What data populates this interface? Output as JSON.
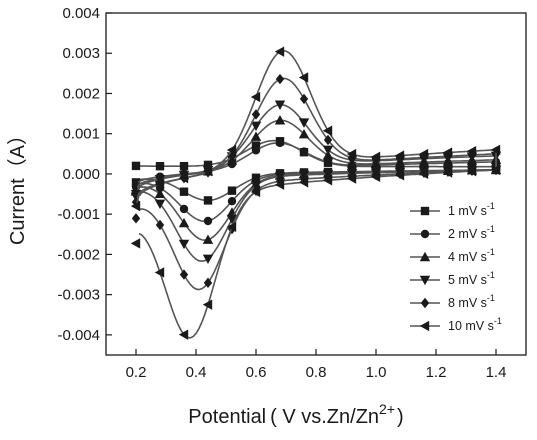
{
  "chart_data": {
    "type": "line",
    "xlabel": "Potential",
    "xlabel_parens": "( V vs.Zn/Zn",
    "xlabel_sup": "2+",
    "xlabel_close": ")",
    "ylabel": "Current（A）",
    "xlim": [
      0.1,
      1.5
    ],
    "ylim": [
      -0.0045,
      0.004
    ],
    "xticks": [
      0.2,
      0.4,
      0.6,
      0.8,
      1.0,
      1.2,
      1.4
    ],
    "xtick_labels": [
      "0.2",
      "0.4",
      "0.6",
      "0.8",
      "1.0",
      "1.2",
      "1.4"
    ],
    "yticks": [
      0.004,
      0.003,
      0.002,
      0.001,
      0.0,
      -0.001,
      -0.002,
      -0.003,
      -0.004
    ],
    "ytick_labels": [
      "0.004",
      "0.003",
      "0.002",
      "0.001",
      "0.000",
      "-0.001",
      "-0.002",
      "-0.003",
      "-0.004"
    ],
    "grid": false,
    "legend_position": "right",
    "legend_unit": "mV s",
    "legend_unit_sup": "-1",
    "series": [
      {
        "name": "1",
        "marker": "square",
        "color": "#2b2b2b",
        "x0": [
          0.2,
          0.0002
        ],
        "anodic_peak": [
          0.66,
          0.00075
        ],
        "x_end": [
          1.4,
          0.00018
        ],
        "cathodic_peak": [
          0.44,
          -0.00065
        ],
        "return_end": [
          0.2,
          -0.0002
        ]
      },
      {
        "name": "2",
        "marker": "circle",
        "color": "#2b2b2b",
        "x0": [
          0.2,
          -0.0003
        ],
        "anodic_peak": [
          0.67,
          0.00082
        ],
        "x_end": [
          1.4,
          0.0003
        ],
        "cathodic_peak": [
          0.43,
          -0.00115
        ],
        "return_end": [
          0.2,
          -0.0003
        ]
      },
      {
        "name": "4",
        "marker": "triangle-up",
        "color": "#2b2b2b",
        "x0": [
          0.2,
          -0.0004
        ],
        "anodic_peak": [
          0.68,
          0.0014
        ],
        "x_end": [
          1.4,
          0.00035
        ],
        "cathodic_peak": [
          0.43,
          -0.0016
        ],
        "return_end": [
          0.2,
          -0.0004
        ]
      },
      {
        "name": "5",
        "marker": "triangle-down",
        "color": "#2b2b2b",
        "x0": [
          0.2,
          -0.0005
        ],
        "anodic_peak": [
          0.68,
          0.0018
        ],
        "x_end": [
          1.4,
          0.00045
        ],
        "cathodic_peak": [
          0.42,
          -0.0021
        ],
        "return_end": [
          0.2,
          -0.0005
        ]
      },
      {
        "name": "8",
        "marker": "diamond",
        "color": "#2b2b2b",
        "x0": [
          0.2,
          -0.0007
        ],
        "anodic_peak": [
          0.69,
          0.0025
        ],
        "x_end": [
          1.4,
          0.0005
        ],
        "cathodic_peak": [
          0.41,
          -0.0027
        ],
        "return_end": [
          0.2,
          -0.001
        ]
      },
      {
        "name": "10",
        "marker": "triangle-left",
        "color": "#2b2b2b",
        "x0": [
          0.2,
          -0.0008
        ],
        "anodic_peak": [
          0.69,
          0.0032
        ],
        "x_end": [
          1.4,
          0.0006
        ],
        "cathodic_peak": [
          0.38,
          -0.0038
        ],
        "return_end": [
          0.2,
          -0.0014
        ]
      }
    ]
  }
}
